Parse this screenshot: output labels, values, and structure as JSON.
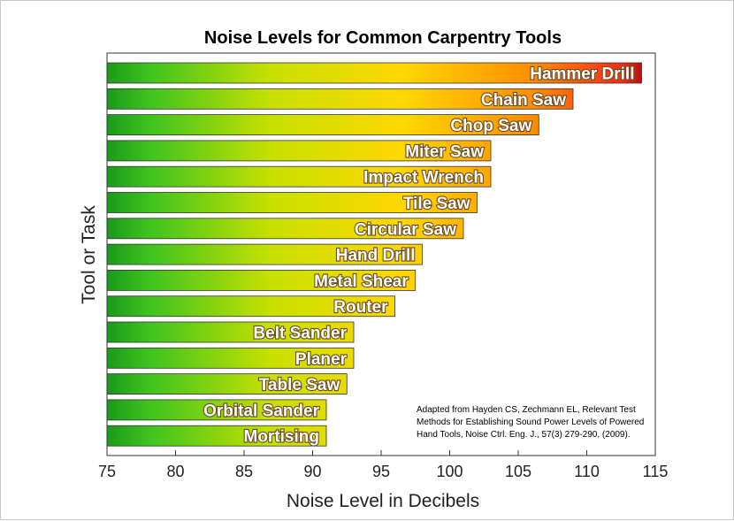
{
  "chart_data": {
    "type": "bar",
    "orientation": "horizontal",
    "title": "Noise Levels for Common Carpentry Tools",
    "xlabel": "Noise Level in Decibels",
    "ylabel": "Tool or Task",
    "xlim": [
      75,
      115
    ],
    "xticks": [
      75,
      80,
      85,
      90,
      95,
      100,
      105,
      110,
      115
    ],
    "grid": false,
    "colors": {
      "low": "#1a9a1a",
      "mid": "#ffd700",
      "high": "#ff2a1a",
      "max": "#800000"
    },
    "categories": [
      "Hammer Drill",
      "Chain Saw",
      "Chop Saw",
      "Miter Saw",
      "Impact Wrench",
      "Tile Saw",
      "Circular Saw",
      "Hand Drill",
      "Metal Shear",
      "Router",
      "Belt Sander",
      "Planer",
      "Table Saw",
      "Orbital Sander",
      "Mortising"
    ],
    "values": [
      114,
      109,
      106.5,
      103,
      103,
      102,
      101,
      98,
      97.5,
      96,
      93,
      93,
      92.5,
      91,
      91
    ],
    "annotation": [
      "Adapted from Hayden CS, Zechmann EL, Relevant Test",
      "Methods for Establishing Sound Power Levels of Powered",
      "Hand Tools, Noise Ctrl. Eng. J., 57(3) 279-290, (2009)."
    ]
  }
}
